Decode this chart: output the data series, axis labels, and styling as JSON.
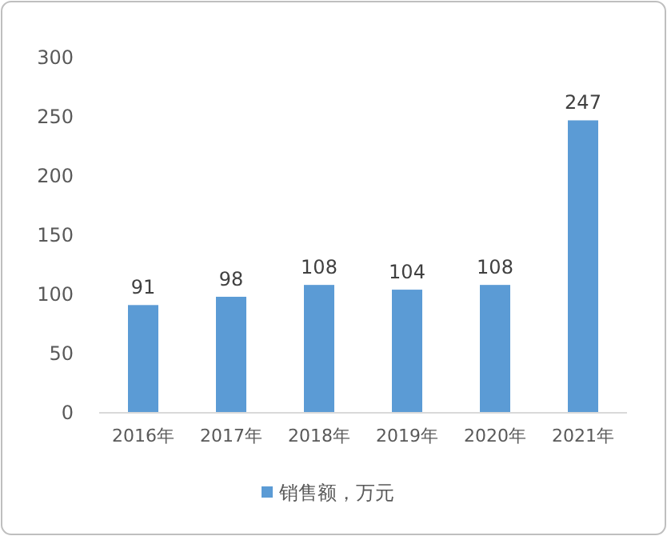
{
  "chart_data": {
    "type": "bar",
    "categories": [
      "2016年",
      "2017年",
      "2018年",
      "2019年",
      "2020年",
      "2021年"
    ],
    "series": [
      {
        "name": "销售额，万元",
        "color": "#5b9bd5",
        "values": [
          91,
          98,
          108,
          104,
          108,
          247
        ]
      }
    ],
    "ylim": [
      0,
      300
    ],
    "yticks": [
      0,
      50,
      100,
      150,
      200,
      250,
      300
    ],
    "data_labels": true,
    "legend": "bottom",
    "grid": false
  }
}
